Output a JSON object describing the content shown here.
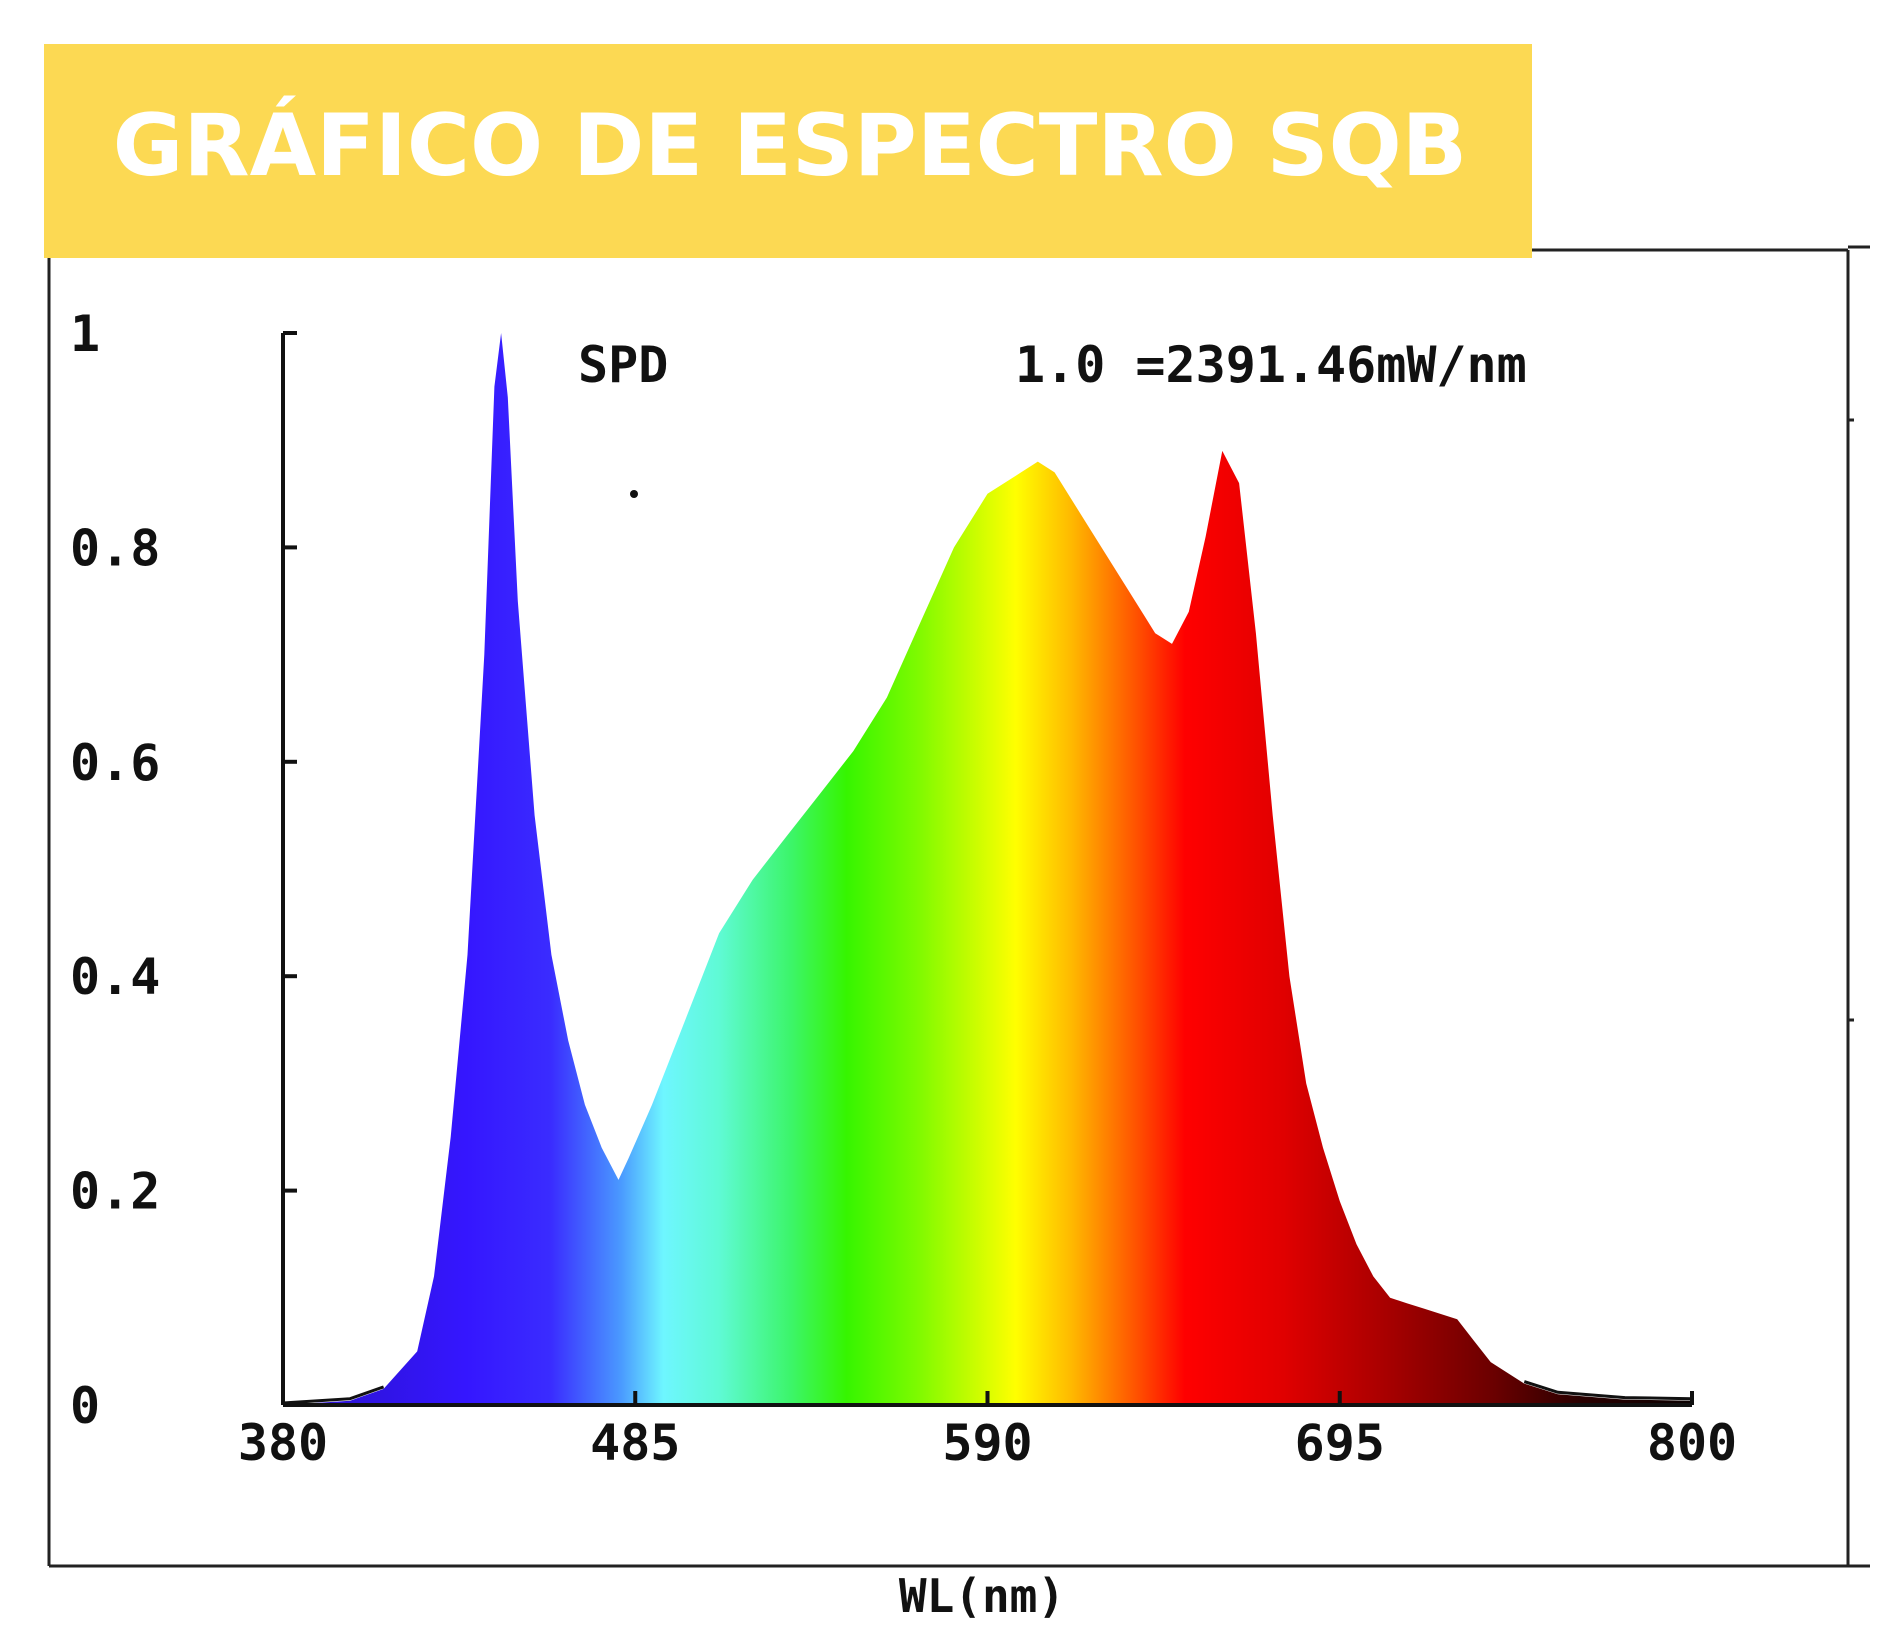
{
  "banner": {
    "title": "GRÁFICO DE ESPECTRO SQB",
    "background": "#fcd953",
    "text_color": "#ffffff"
  },
  "chart_data": {
    "type": "area",
    "series_label": "SPD",
    "annotation": "1.0 =2391.46mW/nm",
    "xlabel": "WL(nm)",
    "ylabel": "",
    "xlim": [
      380,
      800
    ],
    "ylim": [
      0,
      1
    ],
    "x_ticks": [
      380,
      485,
      590,
      695,
      800
    ],
    "x_tick_labels": [
      "380",
      "485",
      "590",
      "695",
      "800"
    ],
    "y_ticks": [
      0,
      0.2,
      0.4,
      0.6,
      0.8,
      1
    ],
    "y_tick_labels": [
      "0",
      "0.2",
      "0.4",
      "0.6",
      "0.8",
      "1"
    ],
    "grid": false,
    "fill": "spectral-rainbow",
    "points": [
      [
        380,
        0.0
      ],
      [
        390,
        0.002
      ],
      [
        400,
        0.004
      ],
      [
        410,
        0.015
      ],
      [
        420,
        0.05
      ],
      [
        425,
        0.12
      ],
      [
        430,
        0.25
      ],
      [
        435,
        0.42
      ],
      [
        440,
        0.7
      ],
      [
        443,
        0.95
      ],
      [
        445,
        1.0
      ],
      [
        447,
        0.94
      ],
      [
        450,
        0.75
      ],
      [
        455,
        0.55
      ],
      [
        460,
        0.42
      ],
      [
        465,
        0.34
      ],
      [
        470,
        0.28
      ],
      [
        475,
        0.24
      ],
      [
        480,
        0.21
      ],
      [
        483,
        0.23
      ],
      [
        490,
        0.28
      ],
      [
        500,
        0.36
      ],
      [
        510,
        0.44
      ],
      [
        520,
        0.49
      ],
      [
        530,
        0.53
      ],
      [
        540,
        0.57
      ],
      [
        550,
        0.61
      ],
      [
        560,
        0.66
      ],
      [
        570,
        0.73
      ],
      [
        580,
        0.8
      ],
      [
        590,
        0.85
      ],
      [
        600,
        0.87
      ],
      [
        605,
        0.88
      ],
      [
        610,
        0.87
      ],
      [
        620,
        0.82
      ],
      [
        630,
        0.77
      ],
      [
        640,
        0.72
      ],
      [
        645,
        0.71
      ],
      [
        650,
        0.74
      ],
      [
        655,
        0.81
      ],
      [
        660,
        0.89
      ],
      [
        665,
        0.86
      ],
      [
        670,
        0.72
      ],
      [
        675,
        0.55
      ],
      [
        680,
        0.4
      ],
      [
        685,
        0.3
      ],
      [
        690,
        0.24
      ],
      [
        695,
        0.19
      ],
      [
        700,
        0.15
      ],
      [
        705,
        0.12
      ],
      [
        710,
        0.1
      ],
      [
        715,
        0.095
      ],
      [
        720,
        0.09
      ],
      [
        725,
        0.085
      ],
      [
        730,
        0.08
      ],
      [
        735,
        0.06
      ],
      [
        740,
        0.04
      ],
      [
        750,
        0.02
      ],
      [
        760,
        0.01
      ],
      [
        780,
        0.005
      ],
      [
        800,
        0.004
      ]
    ]
  }
}
